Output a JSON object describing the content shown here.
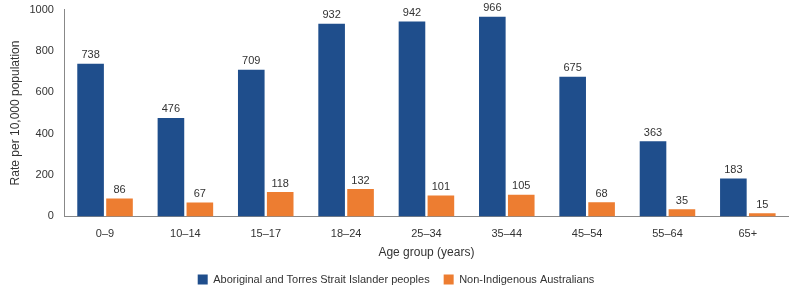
{
  "chart_data": {
    "type": "bar",
    "x_label": "Age group (years)",
    "y_label": "Rate per 10,000 population",
    "categories": [
      "0–9",
      "10–14",
      "15–17",
      "18–24",
      "25–34",
      "35–44",
      "45–54",
      "55–64",
      "65+"
    ],
    "series": [
      {
        "name": "Aboriginal and Torres Strait Islander peoples",
        "color": "#1f4e8c",
        "values": [
          738,
          476,
          709,
          932,
          942,
          966,
          675,
          363,
          183
        ]
      },
      {
        "name": "Non-Indigenous Australians",
        "color": "#ed7d31",
        "values": [
          86,
          67,
          118,
          132,
          101,
          105,
          68,
          35,
          15
        ]
      }
    ],
    "ylim": [
      0,
      1000
    ],
    "yticks": [
      0,
      200,
      400,
      600,
      800,
      1000
    ],
    "grid": false,
    "legend": "bottom",
    "data_labels": true
  }
}
